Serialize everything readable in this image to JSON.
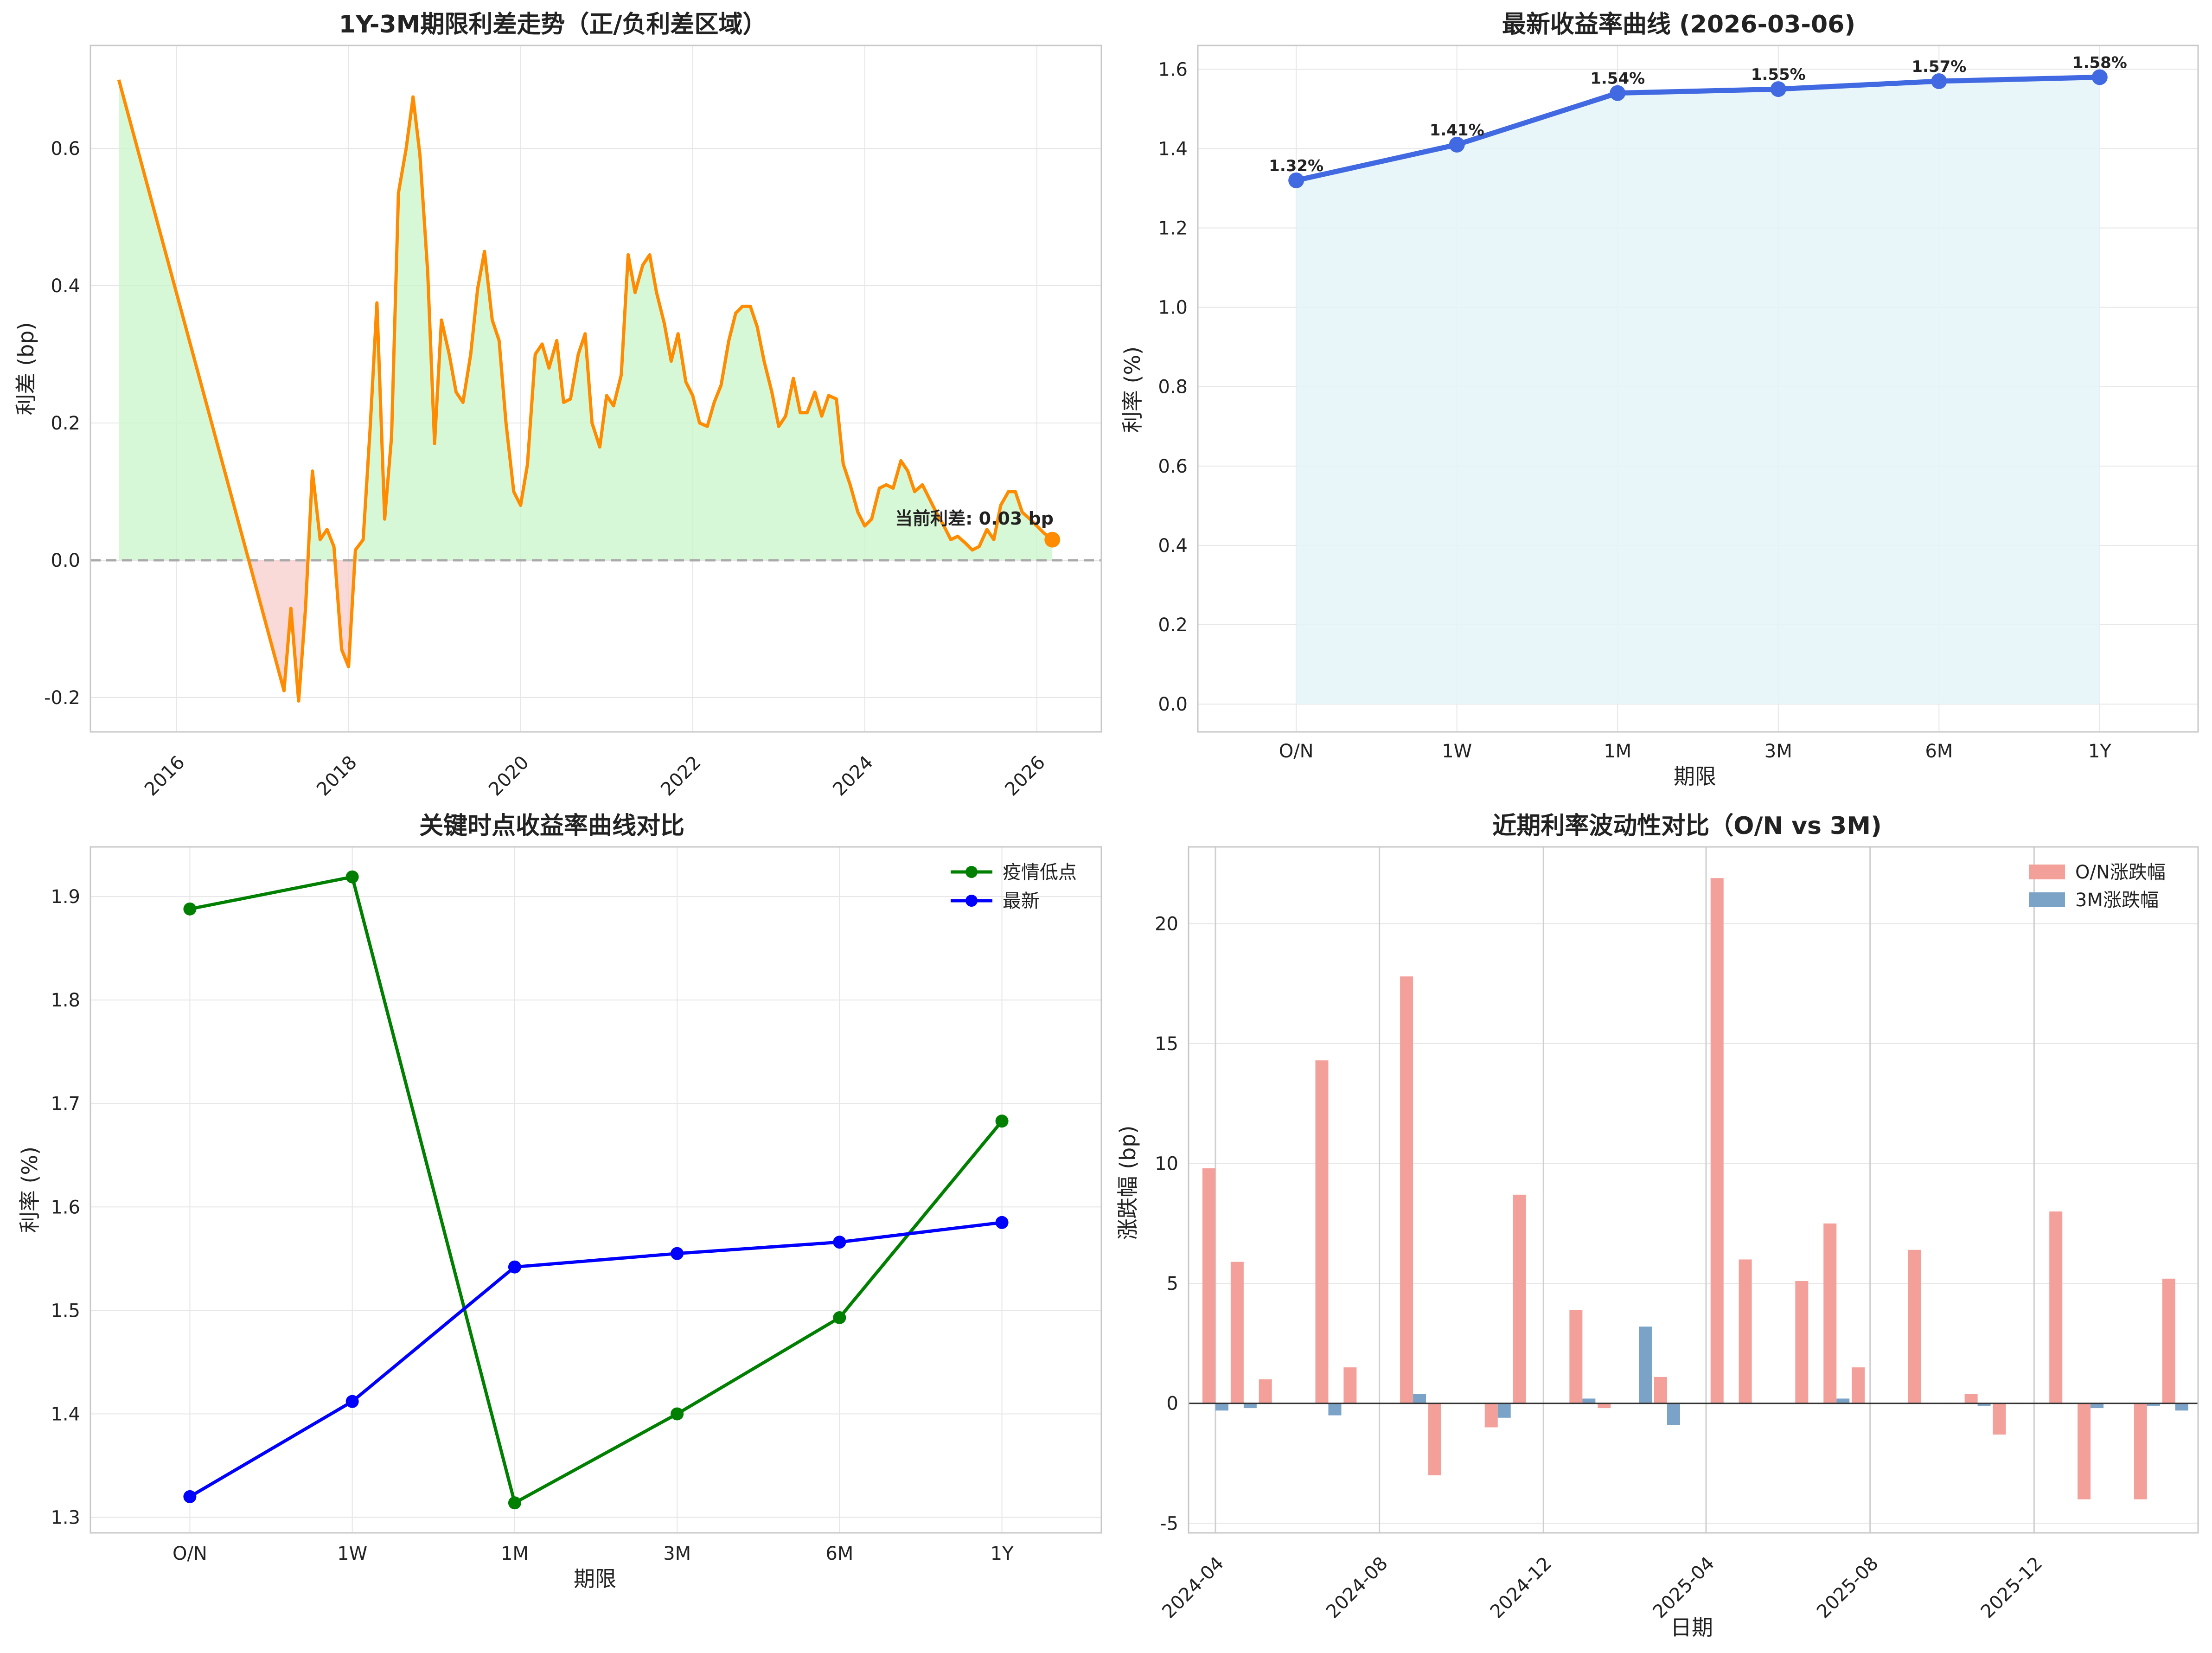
{
  "panels": {
    "spread": {
      "title": "1Y-3M期限利差走势（正/负利差区域）",
      "ylabel": "利差 (bp)",
      "annotation": "当前利差: 0.03 bp"
    },
    "curve": {
      "title": "最新收益率曲线 (2026-03-06)",
      "ylabel": "利率 (%)",
      "xlabel": "期限"
    },
    "compare": {
      "title": "关键时点收益率曲线对比",
      "ylabel": "利率 (%)",
      "xlabel": "期限"
    },
    "vol": {
      "title": "近期利率波动性对比（O/N vs 3M)",
      "ylabel": "涨跌幅 (bp)",
      "xlabel": "日期"
    }
  },
  "colors": {
    "orange": "#ff8c00",
    "royal": "#4169e1",
    "green": "#008000",
    "blue": "#0000ff",
    "salmon": "#f4a09a",
    "steel": "#7ba3c7",
    "posfill": "#c9f5c9",
    "negfill": "#f8cccc",
    "curvefill": "#e4f3f8"
  },
  "chart_data": [
    {
      "type": "area",
      "title": "1Y-3M期限利差走势（正/负利差区域）",
      "xlabel": "",
      "ylabel": "利差 (bp)",
      "xlim": [
        2015.0,
        2026.75
      ],
      "ylim": [
        -0.25,
        0.75
      ],
      "xticks": [
        2016,
        2018,
        2020,
        2022,
        2024,
        2026
      ],
      "yticks": [
        -0.2,
        0.0,
        0.2,
        0.4,
        0.6
      ],
      "ytick_labels": [
        "-0.2",
        "0.0",
        "0.2",
        "0.4",
        "0.6"
      ],
      "grid": true,
      "reference_line": 0,
      "x": [
        2015.33,
        2017.25,
        2017.33,
        2017.42,
        2017.5,
        2017.58,
        2017.67,
        2017.75,
        2017.83,
        2017.92,
        2018.0,
        2018.08,
        2018.17,
        2018.25,
        2018.33,
        2018.42,
        2018.5,
        2018.58,
        2018.67,
        2018.75,
        2018.83,
        2018.92,
        2019.0,
        2019.08,
        2019.17,
        2019.25,
        2019.33,
        2019.42,
        2019.5,
        2019.58,
        2019.67,
        2019.75,
        2019.83,
        2019.92,
        2020.0,
        2020.08,
        2020.17,
        2020.25,
        2020.33,
        2020.42,
        2020.5,
        2020.58,
        2020.67,
        2020.75,
        2020.83,
        2020.92,
        2021.0,
        2021.08,
        2021.17,
        2021.25,
        2021.33,
        2021.42,
        2021.5,
        2021.58,
        2021.67,
        2021.75,
        2021.83,
        2021.92,
        2022.0,
        2022.08,
        2022.17,
        2022.25,
        2022.33,
        2022.42,
        2022.5,
        2022.58,
        2022.67,
        2022.75,
        2022.83,
        2022.92,
        2023.0,
        2023.08,
        2023.17,
        2023.25,
        2023.33,
        2023.42,
        2023.5,
        2023.58,
        2023.67,
        2023.75,
        2023.83,
        2023.92,
        2024.0,
        2024.08,
        2024.17,
        2024.25,
        2024.33,
        2024.42,
        2024.5,
        2024.58,
        2024.67,
        2024.75,
        2024.83,
        2024.92,
        2025.0,
        2025.08,
        2025.17,
        2025.25,
        2025.33,
        2025.42,
        2025.5,
        2025.58,
        2025.67,
        2025.75,
        2025.83,
        2025.92,
        2026.0,
        2026.08,
        2026.18
      ],
      "values": [
        0.7,
        -0.19,
        -0.07,
        -0.205,
        -0.07,
        0.13,
        0.03,
        0.045,
        0.02,
        -0.13,
        -0.155,
        0.015,
        0.03,
        0.19,
        0.375,
        0.06,
        0.18,
        0.535,
        0.6,
        0.675,
        0.59,
        0.42,
        0.17,
        0.35,
        0.3,
        0.245,
        0.23,
        0.3,
        0.395,
        0.45,
        0.35,
        0.32,
        0.2,
        0.1,
        0.08,
        0.14,
        0.3,
        0.315,
        0.28,
        0.32,
        0.23,
        0.235,
        0.3,
        0.33,
        0.2,
        0.165,
        0.24,
        0.225,
        0.27,
        0.445,
        0.39,
        0.43,
        0.445,
        0.39,
        0.345,
        0.29,
        0.33,
        0.26,
        0.24,
        0.2,
        0.195,
        0.23,
        0.255,
        0.32,
        0.36,
        0.37,
        0.37,
        0.34,
        0.29,
        0.245,
        0.195,
        0.21,
        0.265,
        0.215,
        0.215,
        0.245,
        0.21,
        0.24,
        0.235,
        0.14,
        0.11,
        0.07,
        0.05,
        0.06,
        0.105,
        0.11,
        0.105,
        0.145,
        0.13,
        0.1,
        0.11,
        0.09,
        0.07,
        0.05,
        0.03,
        0.035,
        0.025,
        0.015,
        0.02,
        0.045,
        0.03,
        0.08,
        0.1,
        0.1,
        0.07,
        0.06,
        0.05,
        0.04,
        0.03
      ],
      "current_point": {
        "x": 2026.18,
        "y": 0.03
      }
    },
    {
      "type": "line",
      "title": "最新收益率曲线 (2026-03-06)",
      "xlabel": "期限",
      "ylabel": "利率 (%)",
      "categories": [
        "O/N",
        "1W",
        "1M",
        "3M",
        "6M",
        "1Y"
      ],
      "values": [
        1.32,
        1.41,
        1.54,
        1.55,
        1.57,
        1.58
      ],
      "data_labels": [
        "1.32%",
        "1.41%",
        "1.54%",
        "1.55%",
        "1.57%",
        "1.58%"
      ],
      "ylim": [
        -0.07,
        1.66
      ],
      "yticks": [
        0.0,
        0.2,
        0.4,
        0.6,
        0.8,
        1.0,
        1.2,
        1.4,
        1.6
      ],
      "ytick_labels": [
        "0.0",
        "0.2",
        "0.4",
        "0.6",
        "0.8",
        "1.0",
        "1.2",
        "1.4",
        "1.6"
      ],
      "grid": true,
      "filled_area": true
    },
    {
      "type": "line",
      "title": "关键时点收益率曲线对比",
      "xlabel": "期限",
      "ylabel": "利率 (%)",
      "categories": [
        "O/N",
        "1W",
        "1M",
        "3M",
        "6M",
        "1Y"
      ],
      "series": [
        {
          "name": "疫情低点",
          "values": [
            1.888,
            1.919,
            1.314,
            1.4,
            1.493,
            1.683
          ]
        },
        {
          "name": "最新",
          "values": [
            1.32,
            1.412,
            1.542,
            1.555,
            1.566,
            1.585
          ]
        }
      ],
      "ylim": [
        1.285,
        1.948
      ],
      "yticks": [
        1.3,
        1.4,
        1.5,
        1.6,
        1.7,
        1.8,
        1.9
      ],
      "ytick_labels": [
        "1.3",
        "1.4",
        "1.5",
        "1.6",
        "1.7",
        "1.8",
        "1.9"
      ],
      "legend": "top-right",
      "grid": true
    },
    {
      "type": "bar",
      "title": "近期利率波动性对比（O/N vs 3M)",
      "xlabel": "日期",
      "ylabel": "涨跌幅 (bp)",
      "x_dates": [
        "2024-04-01",
        "2024-04-22",
        "2024-05-13",
        "2024-06-03",
        "2024-06-24",
        "2024-07-15",
        "2024-08-05",
        "2024-08-26",
        "2024-09-16",
        "2024-10-07",
        "2024-10-28",
        "2024-11-18",
        "2024-12-09",
        "2024-12-30",
        "2025-01-20",
        "2025-02-10",
        "2025-03-03",
        "2025-03-24",
        "2025-04-14",
        "2025-05-05",
        "2025-05-26",
        "2025-06-16",
        "2025-07-07",
        "2025-07-28",
        "2025-08-18",
        "2025-09-08",
        "2025-09-29",
        "2025-10-20",
        "2025-11-10",
        "2025-12-01",
        "2025-12-22",
        "2026-01-12",
        "2026-02-02",
        "2026-02-23",
        "2026-03-16"
      ],
      "series": [
        {
          "name": "O/N涨跌幅",
          "values": [
            9.8,
            5.9,
            1.0,
            0,
            14.3,
            1.5,
            0,
            17.8,
            -3.0,
            0,
            -1.0,
            8.7,
            0,
            3.9,
            -0.2,
            0,
            1.1,
            0,
            21.9,
            6.0,
            0,
            5.1,
            7.5,
            1.5,
            0,
            6.4,
            0,
            0.4,
            -1.3,
            0,
            8.0,
            -4.0,
            0,
            -4.0,
            5.2
          ]
        },
        {
          "name": "3M涨跌幅",
          "values": [
            -0.3,
            -0.2,
            0,
            0,
            -0.5,
            0,
            0,
            0.4,
            0,
            0,
            -0.6,
            0,
            0,
            0.2,
            0,
            3.2,
            -0.9,
            0,
            0,
            0,
            0,
            0,
            0.2,
            0,
            0,
            0,
            0,
            -0.1,
            0,
            0,
            0,
            -0.2,
            0,
            -0.1,
            -0.3
          ]
        }
      ],
      "xlim": [
        "2024-03-12",
        "2026-04-02"
      ],
      "xticks": [
        "2024-04-01",
        "2024-08-01",
        "2024-12-01",
        "2025-04-01",
        "2025-08-01",
        "2025-12-01"
      ],
      "xtick_labels": [
        "2024-04",
        "2024-08",
        "2024-12",
        "2025-04",
        "2025-08",
        "2025-12"
      ],
      "ylim": [
        -5.4,
        23.2
      ],
      "yticks": [
        -5,
        0,
        5,
        10,
        15,
        20
      ],
      "ytick_labels": [
        "-5",
        "0",
        "5",
        "10",
        "15",
        "20"
      ],
      "legend": "top-right",
      "grid": true
    }
  ]
}
